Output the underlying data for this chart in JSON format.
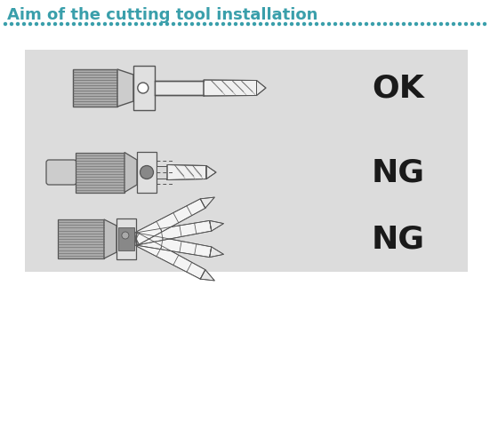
{
  "title": "Aim of the cutting tool installation",
  "title_color": "#3a9fab",
  "title_fontsize": 13,
  "background_color": "#ffffff",
  "ng_box_color": "#dcdcdc",
  "ok_label": "OK",
  "ng_label": "NG",
  "label_fontsize": 26,
  "label_color": "#1a1a1a",
  "dotted_line_color": "#3a9fab",
  "line_color": "#555555",
  "shank_fill": "#aaaaaa",
  "holder_fill": "#e8e8e8",
  "collar_fill": "#e0e0e0",
  "drill_fill": "#f0f0f0"
}
